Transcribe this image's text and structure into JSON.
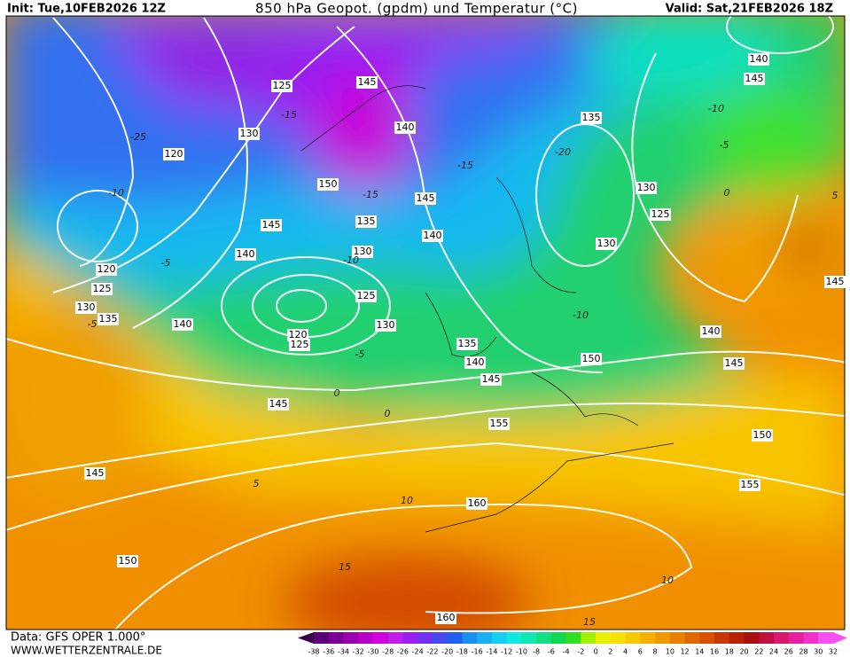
{
  "header": {
    "init": "Init: Tue,10FEB2026 12Z",
    "title": "850 hPa Geopot. (gpdm) und Temperatur (°C)",
    "valid": "Valid: Sat,21FEB2026 18Z"
  },
  "footer": {
    "data": "Data: GFS OPER 1.000°",
    "site": "WWW.WETTERZENTRALE.DE"
  },
  "map": {
    "geopotential_labels": [
      145,
      125,
      140,
      130,
      120,
      150,
      145,
      135,
      145,
      140,
      130,
      140,
      120,
      125,
      130,
      135,
      140,
      125,
      130,
      120,
      125,
      135,
      140,
      145,
      145,
      155,
      150,
      140,
      145,
      150,
      155,
      145,
      160,
      150,
      160,
      135,
      130,
      125,
      130,
      140,
      145,
      145
    ],
    "temperature_labels": [
      -15,
      -10,
      -5,
      -10,
      -15,
      -15,
      -10,
      -5,
      0,
      5,
      -10,
      -5,
      0,
      0,
      -5,
      5,
      10,
      15,
      10,
      15,
      -20,
      -25
    ]
  },
  "colorbar": {
    "ticks": [
      -38,
      -36,
      -34,
      -32,
      -30,
      -28,
      -26,
      -24,
      -22,
      -20,
      -18,
      -16,
      -14,
      -12,
      -10,
      -8,
      -6,
      -4,
      -2,
      0,
      2,
      4,
      6,
      8,
      10,
      12,
      14,
      16,
      18,
      20,
      22,
      24,
      26,
      28,
      30,
      32
    ],
    "colors": [
      "#3a0050",
      "#5b0075",
      "#7a0095",
      "#9a00b0",
      "#b800c8",
      "#d200e0",
      "#c01ee8",
      "#9a1ef0",
      "#7030f0",
      "#4848f0",
      "#2060f0",
      "#1890f0",
      "#18b0f0",
      "#10d0f0",
      "#10e8e0",
      "#10e8b0",
      "#10e080",
      "#10d850",
      "#30e020",
      "#a0f000",
      "#e8f000",
      "#f8e000",
      "#f8c800",
      "#f8b000",
      "#f09800",
      "#e88000",
      "#e06800",
      "#d85000",
      "#c83800",
      "#b82000",
      "#a81010",
      "#c01040",
      "#d81870",
      "#e820a0",
      "#f030c8",
      "#f850f0"
    ]
  }
}
